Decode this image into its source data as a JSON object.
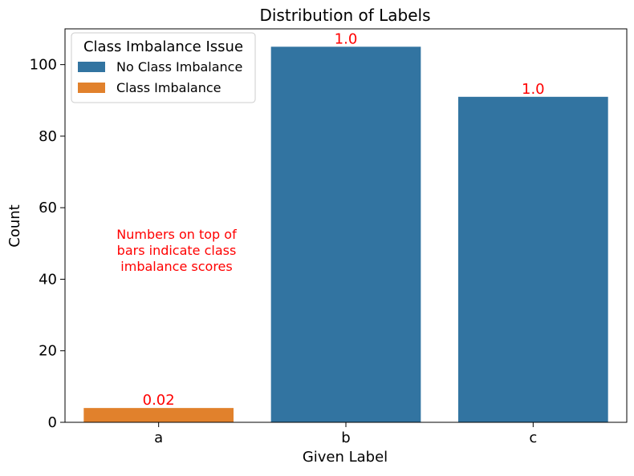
{
  "chart_data": {
    "type": "bar",
    "title": "Distribution of Labels",
    "xlabel": "Given Label",
    "ylabel": "Count",
    "categories": [
      "a",
      "b",
      "c"
    ],
    "values": [
      4,
      105,
      91
    ],
    "bar_labels": [
      "0.02",
      "1.0",
      "1.0"
    ],
    "bar_group": [
      "Class Imbalance",
      "No Class Imbalance",
      "No Class Imbalance"
    ],
    "ylim": [
      0,
      110
    ],
    "yticks": [
      0,
      20,
      40,
      60,
      80,
      100
    ],
    "grid": false,
    "legend": {
      "title": "Class Imbalance Issue",
      "placement": "top-left",
      "entries": [
        {
          "label": "No Class Imbalance",
          "color": "#3274a1"
        },
        {
          "label": "Class Imbalance",
          "color": "#e1812c"
        }
      ]
    },
    "annotation": {
      "lines": [
        "Numbers on top of",
        "bars indicate class",
        "imbalance scores"
      ],
      "color": "#ff0000"
    },
    "bar_label_color": "#ff0000"
  }
}
